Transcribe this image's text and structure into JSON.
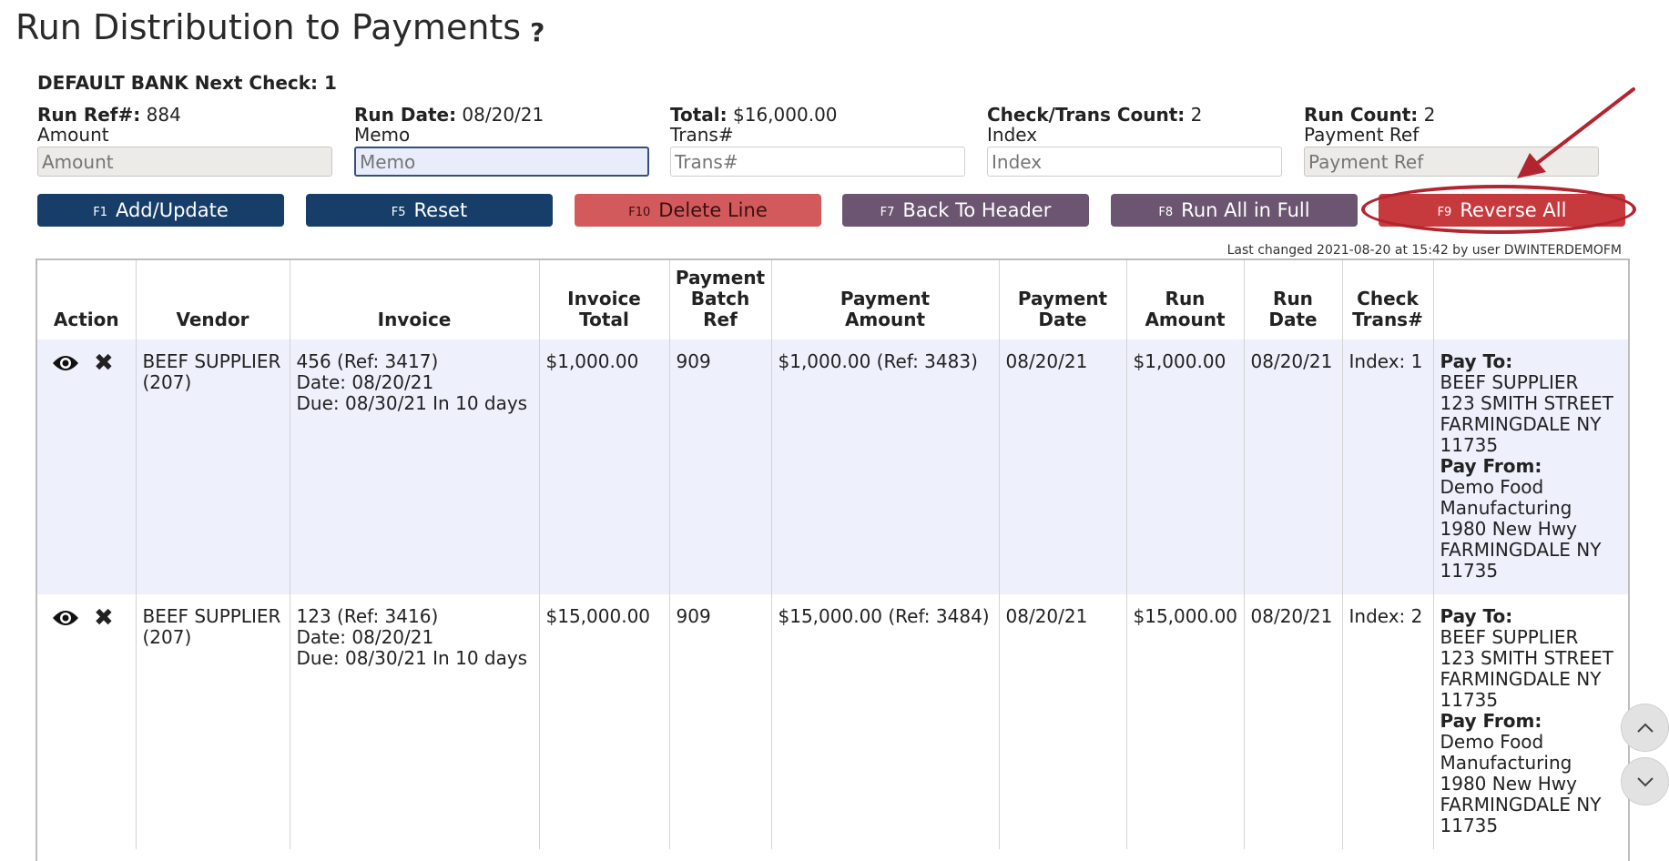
{
  "title": "Run Distribution to Payments",
  "help_glyph": "?",
  "bank_line": "DEFAULT BANK Next Check: 1",
  "fields": [
    {
      "label_bold": "Run Ref#:",
      "value": "884",
      "input_label": "Amount",
      "placeholder": "Amount"
    },
    {
      "label_bold": "Run Date:",
      "value": "08/20/21",
      "input_label": "Memo",
      "placeholder": "Memo"
    },
    {
      "label_bold": "Total:",
      "value": "$16,000.00",
      "input_label": "Trans#",
      "placeholder": "Trans#"
    },
    {
      "label_bold": "Check/Trans Count:",
      "value": "2",
      "input_label": "Index",
      "placeholder": "Index"
    },
    {
      "label_bold": "Run Count:",
      "value": "2",
      "input_label": "Payment Ref",
      "placeholder": "Payment Ref"
    }
  ],
  "buttons": [
    {
      "key": "F1",
      "label": "Add/Update"
    },
    {
      "key": "F5",
      "label": "Reset"
    },
    {
      "key": "F10",
      "label": "Delete Line"
    },
    {
      "key": "F7",
      "label": "Back To Header"
    },
    {
      "key": "F8",
      "label": "Run All in Full"
    },
    {
      "key": "F9",
      "label": "Reverse All"
    }
  ],
  "last_changed": "Last changed 2021-08-20 at 15:42 by user DWINTERDEMOFM",
  "table": {
    "headers": {
      "action": "Action",
      "vendor": "Vendor",
      "invoice": "Invoice",
      "invoice_total": [
        "Invoice",
        "Total"
      ],
      "payment_batch_ref": [
        "Payment",
        "Batch",
        "Ref"
      ],
      "payment_amount": [
        "Payment",
        "Amount"
      ],
      "payment_date": [
        "Payment",
        "Date"
      ],
      "run_amount": [
        "Run",
        "Amount"
      ],
      "run_date": [
        "Run",
        "Date"
      ],
      "check_trans": [
        "Check",
        "Trans#"
      ],
      "address": ""
    },
    "rows": [
      {
        "vendor": [
          "BEEF SUPPLIER",
          "(207)"
        ],
        "invoice": [
          "456 (Ref: 3417)",
          "Date: 08/20/21",
          "Due: 08/30/21 In 10 days"
        ],
        "invoice_total": "$1,000.00",
        "batch_ref": "909",
        "payment_amount": "$1,000.00 (Ref: 3483)",
        "payment_date": "08/20/21",
        "run_amount": "$1,000.00",
        "run_date": "08/20/21",
        "check_trans": "Index: 1",
        "pay_to_label": "Pay To:",
        "pay_to": [
          "BEEF SUPPLIER",
          "123 SMITH STREET",
          "FARMINGDALE NY",
          "11735"
        ],
        "pay_from_label": "Pay From:",
        "pay_from": [
          "Demo Food",
          "Manufacturing",
          "1980 New Hwy",
          "FARMINGDALE NY",
          "11735"
        ]
      },
      {
        "vendor": [
          "BEEF SUPPLIER",
          "(207)"
        ],
        "invoice": [
          "123 (Ref: 3416)",
          "Date: 08/20/21",
          "Due: 08/30/21 In 10 days"
        ],
        "invoice_total": "$15,000.00",
        "batch_ref": "909",
        "payment_amount": "$15,000.00 (Ref: 3484)",
        "payment_date": "08/20/21",
        "run_amount": "$15,000.00",
        "run_date": "08/20/21",
        "check_trans": "Index: 2",
        "pay_to_label": "Pay To:",
        "pay_to": [
          "BEEF SUPPLIER",
          "123 SMITH STREET",
          "FARMINGDALE NY",
          "11735"
        ],
        "pay_from_label": "Pay From:",
        "pay_from": [
          "Demo Food",
          "Manufacturing",
          "1980 New Hwy",
          "FARMINGDALE NY",
          "11735"
        ]
      }
    ]
  },
  "colors": {
    "navy_button": "#163e68",
    "delete_button": "#d25a5c",
    "purple_button": "#6b5570",
    "reverse_button": "#c63a3e",
    "annotation": "#b22530",
    "row_highlight": "#eef0fc"
  },
  "icons": [
    "help-icon",
    "eye-icon",
    "x-icon",
    "annotation-arrow",
    "chevron-up-icon",
    "chevron-down-icon"
  ]
}
